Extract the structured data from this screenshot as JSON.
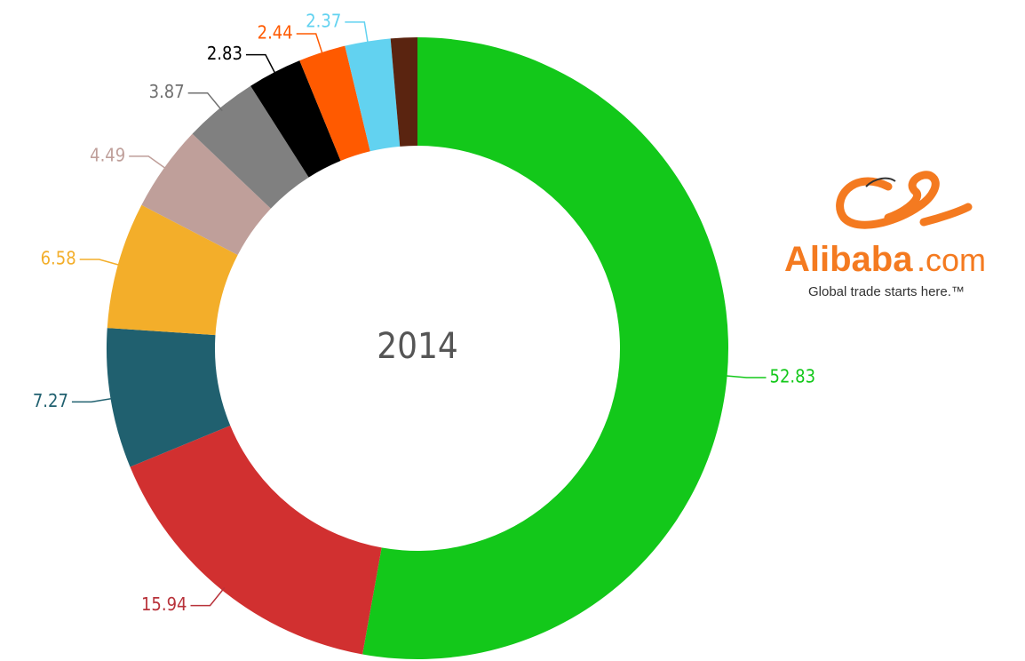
{
  "chart_data": {
    "type": "donut",
    "center_label": "2014",
    "values": [
      52.83,
      15.94,
      7.27,
      6.58,
      4.49,
      3.87,
      2.83,
      2.44,
      2.37,
      1.38
    ],
    "value_labels": [
      "52.83",
      "15.94",
      "7.27",
      "6.58",
      "4.49",
      "3.87",
      "2.83",
      "2.44",
      "2.37",
      null
    ],
    "colors": [
      "#13c81a",
      "#d13030",
      "#20606f",
      "#f3ae2a",
      "#bf9f9a",
      "#808080",
      "#000000",
      "#ff5a00",
      "#62d2f0",
      "#5a2410"
    ],
    "label_colors": [
      "#13c81a",
      "#b8323a",
      "#20606f",
      "#f3ae2a",
      "#bf9f9a",
      "#707070",
      "#000000",
      "#ff5a00",
      "#62d2f0",
      "#5a2410"
    ]
  },
  "logo": {
    "name": "Alibaba",
    "suffix": ".com",
    "tagline": "Global trade starts here.™"
  }
}
